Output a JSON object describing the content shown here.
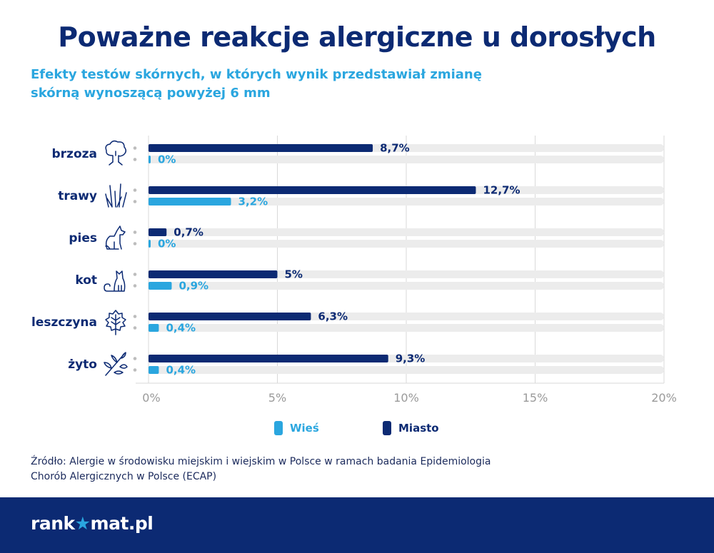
{
  "title": "Poważne reakcje alergiczne u dorosłych",
  "subtitle_line1": "Efekty testów skórnych, w których wynik przedstawiał zmianę",
  "subtitle_line2": "skórną wynoszącą powyżej 6 mm",
  "source_line1": "Źródło: Alergie w środowisku miejskim i wiejskim w Polsce w ramach badania Epidemiologia",
  "source_line2": "Chorób Alergicznych w Polsce (ECAP)",
  "logo": {
    "part1": "rank",
    "mark": "★",
    "part2": "mat.pl"
  },
  "colors": {
    "miasto": "#0c2a73",
    "wies": "#2aa6df",
    "track": "#ececec",
    "grid": "#d9d9d9",
    "tick": "#9a9a9a"
  },
  "chart_data": {
    "type": "bar",
    "orientation": "horizontal",
    "categories": [
      "brzoza",
      "trawy",
      "pies",
      "kot",
      "leszczyna",
      "żyto"
    ],
    "icons": [
      "tree-icon",
      "grass-icon",
      "dog-icon",
      "cat-icon",
      "leaf-icon",
      "rye-icon"
    ],
    "series": [
      {
        "name": "Miasto",
        "values": [
          8.7,
          12.7,
          0.7,
          5,
          6.3,
          9.3
        ],
        "labels": [
          "8,7%",
          "12,7%",
          "0,7%",
          "5%",
          "6,3%",
          "9,3%"
        ]
      },
      {
        "name": "Wieś",
        "values": [
          0,
          3.2,
          0,
          0.9,
          0.4,
          0.4
        ],
        "labels": [
          "0%",
          "3,2%",
          "0%",
          "0,9%",
          "0,4%",
          "0,4%"
        ]
      }
    ],
    "xlim": [
      0,
      20
    ],
    "xticks": [
      0,
      5,
      10,
      15,
      20
    ],
    "xtick_labels": [
      "0%",
      "5%",
      "10%",
      "15%",
      "20%"
    ],
    "grid": true,
    "legend": {
      "position": "bottom",
      "items": [
        "Wieś",
        "Miasto"
      ]
    }
  }
}
